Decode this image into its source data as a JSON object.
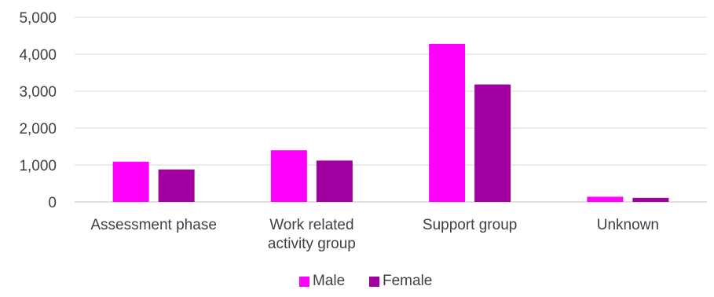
{
  "chart_data": {
    "type": "bar",
    "categories": [
      "Assessment phase",
      "Work related activity group",
      "Support group",
      "Unknown"
    ],
    "category_label_lines": [
      [
        "Assessment phase"
      ],
      [
        "Work related",
        "activity group"
      ],
      [
        "Support group"
      ],
      [
        "Unknown"
      ]
    ],
    "series": [
      {
        "name": "Male",
        "values": [
          1090,
          1400,
          4280,
          140
        ],
        "color": "#ff00ff"
      },
      {
        "name": "Female",
        "values": [
          880,
          1120,
          3180,
          110
        ],
        "color": "#a000a0"
      }
    ],
    "ylim": [
      0,
      5000
    ],
    "yticks": [
      0,
      1000,
      2000,
      3000,
      4000,
      5000
    ],
    "ytick_labels": [
      "0",
      "1,000",
      "2,000",
      "3,000",
      "4,000",
      "5,000"
    ],
    "grid": true,
    "legend_position": "bottom"
  }
}
